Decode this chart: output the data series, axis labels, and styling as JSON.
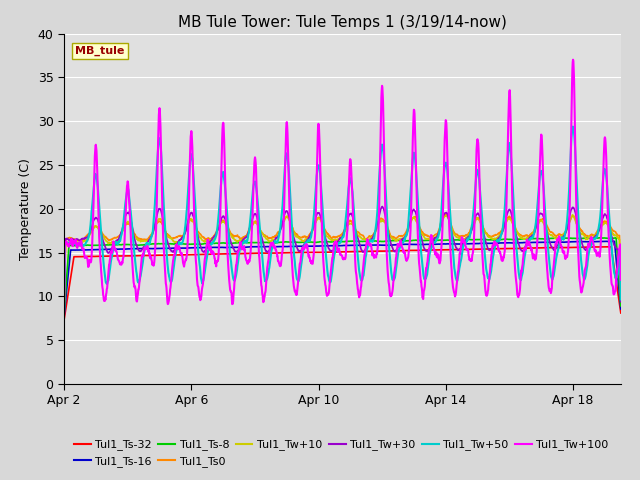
{
  "title": "MB Tule Tower: Tule Temps 1 (3/19/14-now)",
  "ylabel": "Temperature (C)",
  "xlim_days": [
    0,
    17.5
  ],
  "ylim": [
    0,
    40
  ],
  "yticks": [
    0,
    5,
    10,
    15,
    20,
    25,
    30,
    35,
    40
  ],
  "fig_bg_color": "#d8d8d8",
  "plot_bg_color": "#e0e0e0",
  "grid_color": "#ffffff",
  "watermark_text": "MB_tule",
  "watermark_bg": "#ffffcc",
  "watermark_fg": "#990000",
  "series_order": [
    "Tul1_Ts-32",
    "Tul1_Ts-16",
    "Tul1_Ts-8",
    "Tul1_Ts0",
    "Tul1_Tw+10",
    "Tul1_Tw+30",
    "Tul1_Tw+50",
    "Tul1_Tw+100"
  ],
  "series": {
    "Tul1_Ts-32": {
      "color": "#ff0000",
      "lw": 1.2
    },
    "Tul1_Ts-16": {
      "color": "#0000cc",
      "lw": 1.2
    },
    "Tul1_Ts-8": {
      "color": "#00cc00",
      "lw": 1.2
    },
    "Tul1_Ts0": {
      "color": "#ff8800",
      "lw": 1.2
    },
    "Tul1_Tw+10": {
      "color": "#cccc00",
      "lw": 1.2
    },
    "Tul1_Tw+30": {
      "color": "#9900cc",
      "lw": 1.2
    },
    "Tul1_Tw+50": {
      "color": "#00cccc",
      "lw": 1.5
    },
    "Tul1_Tw+100": {
      "color": "#ff00ff",
      "lw": 1.5
    }
  },
  "xtick_labels": [
    "Apr 2",
    "Apr 6",
    "Apr 10",
    "Apr 14",
    "Apr 18"
  ],
  "xtick_positions": [
    0,
    4,
    8,
    12,
    16
  ],
  "legend_row1": [
    "Tul1_Ts-32",
    "Tul1_Ts-16",
    "Tul1_Ts-8",
    "Tul1_Ts0",
    "Tul1_Tw+10",
    "Tul1_Tw+30"
  ],
  "legend_row2": [
    "Tul1_Tw+50",
    "Tul1_Tw+100"
  ]
}
